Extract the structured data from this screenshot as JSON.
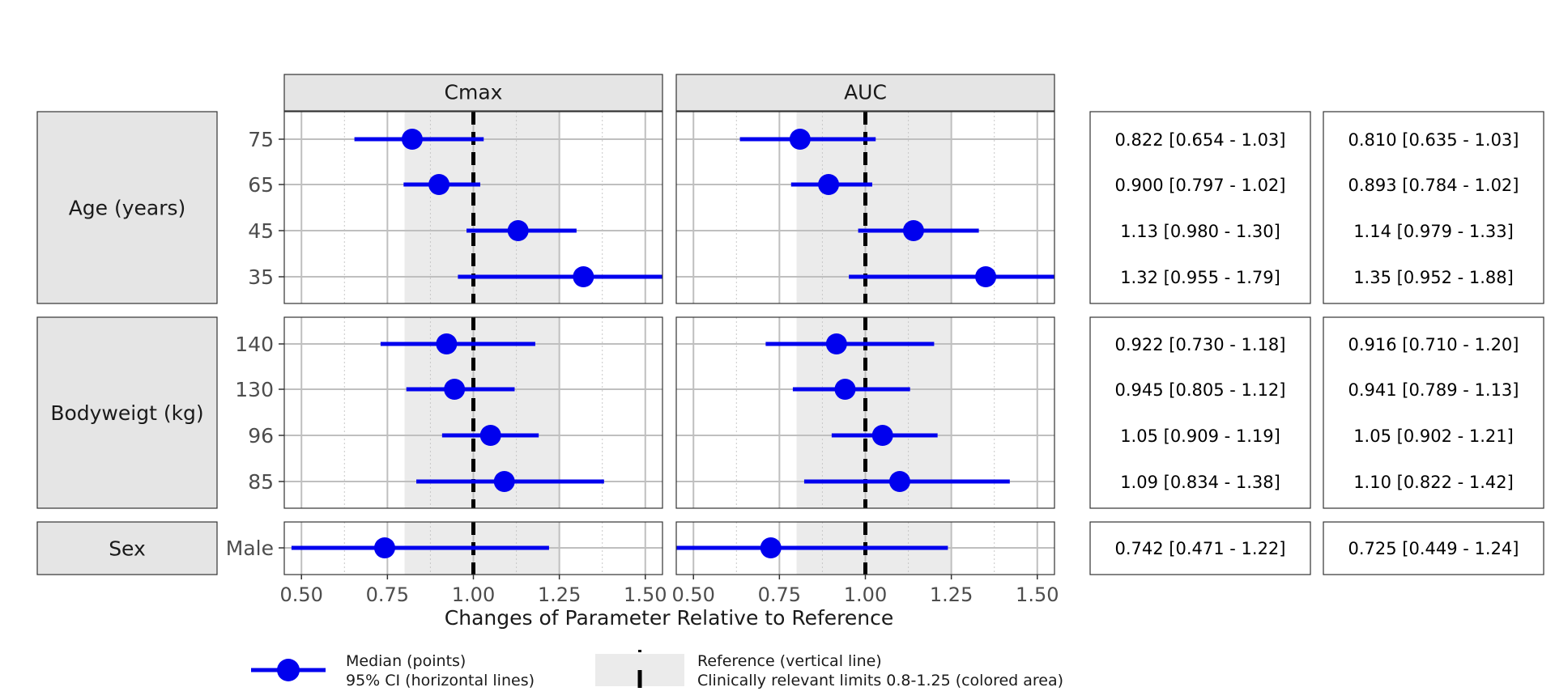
{
  "chart_data": {
    "type": "forest",
    "facets": [
      "Cmax",
      "AUC"
    ],
    "xlabel": "Changes of Parameter Relative to Reference",
    "xlim": [
      0.45,
      1.55
    ],
    "xticks": [
      "0.50",
      "0.75",
      "1.00",
      "1.25",
      "1.50"
    ],
    "reference_value": 1.0,
    "clinical_limits": [
      0.8,
      1.25
    ],
    "colors": {
      "point": "#0000ee",
      "reference_line": "#000000",
      "limits_band": "#ebebeb",
      "strip": "#e5e5e5"
    },
    "groups": [
      {
        "name": "Age (years)",
        "rows": [
          {
            "label": "75",
            "Cmax": {
              "median": 0.822,
              "lower": 0.654,
              "upper": 1.03
            },
            "AUC": {
              "median": 0.81,
              "lower": 0.635,
              "upper": 1.03
            },
            "Cmax_text": "0.822 [0.654 - 1.03]",
            "AUC_text": "0.810 [0.635 - 1.03]"
          },
          {
            "label": "65",
            "Cmax": {
              "median": 0.9,
              "lower": 0.797,
              "upper": 1.02
            },
            "AUC": {
              "median": 0.893,
              "lower": 0.784,
              "upper": 1.02
            },
            "Cmax_text": "0.900 [0.797 - 1.02]",
            "AUC_text": "0.893 [0.784 - 1.02]"
          },
          {
            "label": "45",
            "Cmax": {
              "median": 1.13,
              "lower": 0.98,
              "upper": 1.3
            },
            "AUC": {
              "median": 1.14,
              "lower": 0.979,
              "upper": 1.33
            },
            "Cmax_text": "1.13 [0.980 - 1.30]",
            "AUC_text": "1.14 [0.979 - 1.33]"
          },
          {
            "label": "35",
            "Cmax": {
              "median": 1.32,
              "lower": 0.955,
              "upper": 1.79
            },
            "AUC": {
              "median": 1.35,
              "lower": 0.952,
              "upper": 1.88
            },
            "Cmax_text": "1.32 [0.955 - 1.79]",
            "AUC_text": "1.35 [0.952 - 1.88]"
          }
        ]
      },
      {
        "name": "Bodyweigt (kg)",
        "rows": [
          {
            "label": "140",
            "Cmax": {
              "median": 0.922,
              "lower": 0.73,
              "upper": 1.18
            },
            "AUC": {
              "median": 0.916,
              "lower": 0.71,
              "upper": 1.2
            },
            "Cmax_text": "0.922 [0.730 - 1.18]",
            "AUC_text": "0.916 [0.710 - 1.20]"
          },
          {
            "label": "130",
            "Cmax": {
              "median": 0.945,
              "lower": 0.805,
              "upper": 1.12
            },
            "AUC": {
              "median": 0.941,
              "lower": 0.789,
              "upper": 1.13
            },
            "Cmax_text": "0.945 [0.805 - 1.12]",
            "AUC_text": "0.941 [0.789 - 1.13]"
          },
          {
            "label": "96",
            "Cmax": {
              "median": 1.05,
              "lower": 0.909,
              "upper": 1.19
            },
            "AUC": {
              "median": 1.05,
              "lower": 0.902,
              "upper": 1.21
            },
            "Cmax_text": "1.05 [0.909 - 1.19]",
            "AUC_text": "1.05 [0.902 - 1.21]"
          },
          {
            "label": "85",
            "Cmax": {
              "median": 1.09,
              "lower": 0.834,
              "upper": 1.38
            },
            "AUC": {
              "median": 1.1,
              "lower": 0.822,
              "upper": 1.42
            },
            "Cmax_text": "1.09 [0.834 - 1.38]",
            "AUC_text": "1.10 [0.822 - 1.42]"
          }
        ]
      },
      {
        "name": "Sex",
        "rows": [
          {
            "label": "Male",
            "Cmax": {
              "median": 0.742,
              "lower": 0.471,
              "upper": 1.22
            },
            "AUC": {
              "median": 0.725,
              "lower": 0.449,
              "upper": 1.24
            },
            "Cmax_text": "0.742 [0.471 - 1.22]",
            "AUC_text": "0.725 [0.449 - 1.24]"
          }
        ]
      }
    ],
    "legend": {
      "placement": "bottom",
      "point_line1": "Median (points)",
      "point_line2": "95% CI (horizontal lines)",
      "ref_line1": "Reference (vertical line)",
      "ref_line2": "Clinically relevant limits 0.8-1.25 (colored area)"
    }
  }
}
